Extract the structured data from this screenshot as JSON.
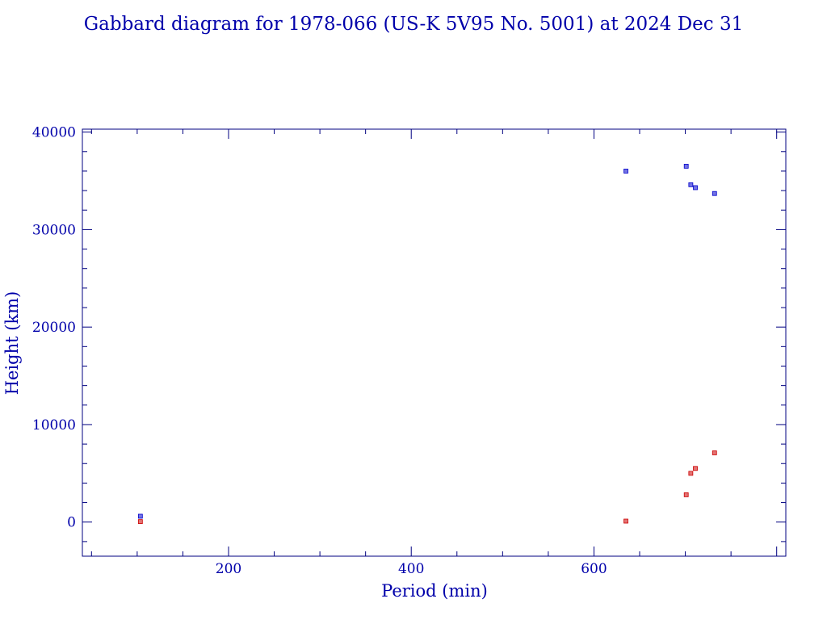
{
  "chart_data": {
    "type": "scatter",
    "title": "Gabbard diagram for 1978-066 (US-K 5V95 No. 5001) at 2024 Dec 31",
    "xlabel": "Period (min)",
    "ylabel": "Height (km)",
    "xlim": [
      40,
      810
    ],
    "ylim": [
      -3500,
      40300
    ],
    "x_ticks": [
      200,
      400,
      600
    ],
    "y_ticks": [
      0,
      10000,
      20000,
      30000,
      40000
    ],
    "x_tick_labels": [
      "200",
      "400",
      "600"
    ],
    "y_tick_labels": [
      "0",
      "10000",
      "20000",
      "30000",
      "40000"
    ],
    "grid": false,
    "series": [
      {
        "color": "#0000cc",
        "points": [
          {
            "x": 103.5,
            "y": 600
          },
          {
            "x": 635,
            "y": 36000
          },
          {
            "x": 701,
            "y": 36500
          },
          {
            "x": 706,
            "y": 34600
          },
          {
            "x": 711,
            "y": 34300
          },
          {
            "x": 732,
            "y": 33700
          }
        ]
      },
      {
        "color": "#cc0000",
        "points": [
          {
            "x": 103.5,
            "y": 50
          },
          {
            "x": 635,
            "y": 100
          },
          {
            "x": 701,
            "y": 2800
          },
          {
            "x": 706,
            "y": 5000
          },
          {
            "x": 711,
            "y": 5500
          },
          {
            "x": 732,
            "y": 7100
          }
        ]
      }
    ]
  },
  "colors": {
    "text": "#0000aa",
    "axis": "#000080"
  }
}
